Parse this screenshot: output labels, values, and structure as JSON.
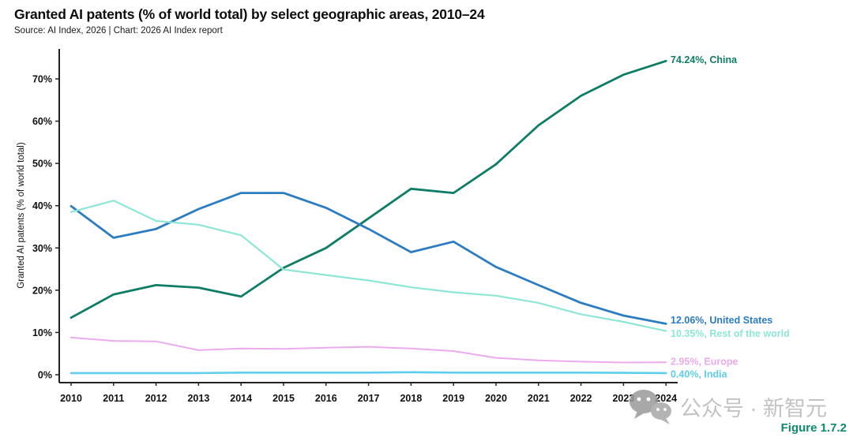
{
  "header": {
    "title": "Granted AI patents (% of world total) by select geographic areas, 2010–24",
    "subtitle": "Source: AI Index, 2026 | Chart: 2026 AI Index report"
  },
  "watermark": {
    "icon": "wechat-icon",
    "text": "公众号 · 新智元",
    "color": "#c3c3c3"
  },
  "figure_label": {
    "text": "Figure 1.7.2",
    "color": "#0c8a6b"
  },
  "chart_data": {
    "type": "line",
    "title": "Granted AI patents (% of world total) by select geographic areas, 2010–24",
    "xlabel": "",
    "ylabel": "Granted AI patents (% of world total)",
    "x": [
      2010,
      2011,
      2012,
      2013,
      2014,
      2015,
      2016,
      2017,
      2018,
      2019,
      2020,
      2021,
      2022,
      2023,
      2024
    ],
    "y_ticks": [
      "0%",
      "10%",
      "20%",
      "30%",
      "40%",
      "50%",
      "60%",
      "70%"
    ],
    "ylim": [
      0,
      78
    ],
    "grid": false,
    "legend_position": "right-end-labels",
    "series": [
      {
        "name": "China",
        "color": "#0d7d66",
        "end_label": "74.24%, China",
        "line_width": 2.8,
        "label_dy": -2,
        "values": [
          13.5,
          19.0,
          21.2,
          20.6,
          18.5,
          25.3,
          30.0,
          37.0,
          44.0,
          43.0,
          49.8,
          59.0,
          66.0,
          71.0,
          74.24
        ]
      },
      {
        "name": "United States",
        "color": "#2b7cc1",
        "end_label": "12.06%, United States",
        "line_width": 2.8,
        "label_dy": -5,
        "values": [
          39.9,
          32.4,
          34.5,
          39.2,
          43.0,
          43.0,
          39.5,
          34.5,
          29.0,
          31.5,
          25.5,
          21.2,
          17.0,
          14.0,
          12.06
        ]
      },
      {
        "name": "Rest of the world",
        "color": "#8ee7d6",
        "end_label": "10.35%, Rest of the world",
        "line_width": 2.2,
        "label_dy": 3,
        "values": [
          38.5,
          41.2,
          36.4,
          35.5,
          33.0,
          24.9,
          23.6,
          22.3,
          20.7,
          19.5,
          18.7,
          17.0,
          14.3,
          12.5,
          10.35
        ]
      },
      {
        "name": "Europe",
        "color": "#edaaed",
        "end_label": "2.95%, Europe",
        "line_width": 2.0,
        "label_dy": -1,
        "values": [
          8.8,
          8.0,
          7.9,
          5.8,
          6.2,
          6.1,
          6.4,
          6.6,
          6.2,
          5.6,
          4.0,
          3.4,
          3.1,
          2.9,
          2.95
        ]
      },
      {
        "name": "India",
        "color": "#5ecdee",
        "end_label": "0.40%, India",
        "line_width": 2.6,
        "label_dy": 1,
        "values": [
          0.4,
          0.4,
          0.4,
          0.4,
          0.5,
          0.5,
          0.5,
          0.5,
          0.6,
          0.5,
          0.5,
          0.5,
          0.5,
          0.45,
          0.4
        ]
      }
    ]
  }
}
